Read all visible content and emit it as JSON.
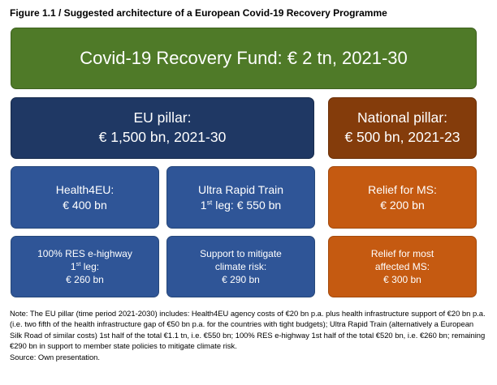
{
  "figure_title": "Figure 1.1 / Suggested architecture of a European Covid-19 Recovery Programme",
  "fund": {
    "text": "Covid-19 Recovery Fund: € 2 tn, 2021-30",
    "color": "#4f7a28"
  },
  "eu_pillar": {
    "line1": "EU pillar:",
    "line2": "€ 1,500 bn, 2021-30",
    "color": "#1f3864"
  },
  "national_pillar": {
    "line1": "National pillar:",
    "line2": "€ 500 bn, 2021-23",
    "color": "#843c0b"
  },
  "health4eu": {
    "line1": "Health4EU:",
    "line2": "€ 400 bn"
  },
  "ultra_rapid_train": {
    "line1": "Ultra Rapid Train",
    "line2_ord": "1",
    "line2_sup": "st",
    "line2_rest": " leg: € 550 bn"
  },
  "relief_ms": {
    "line1": "Relief for MS:",
    "line2": "€ 200 bn"
  },
  "res_highway": {
    "line1": "100% RES e-highway",
    "line2_ord": "1",
    "line2_sup": "st",
    "line2_rest": " leg:",
    "line3": "€ 260 bn"
  },
  "climate_risk": {
    "line1": "Support to mitigate",
    "line2": "climate risk:",
    "line3": "€ 290 bn"
  },
  "relief_most": {
    "line1": "Relief for most",
    "line2": "affected MS:",
    "line3": "€ 300 bn"
  },
  "colors": {
    "blue_box": "#2f5597",
    "orange_box": "#c55a11"
  },
  "note": "Note: The EU pillar (time period 2021-2030) includes: Health4EU agency costs of €20 bn p.a. plus health infrastructure support of €20 bn p.a. (i.e. two fifth of the health infrastructure gap of €50 bn p.a. for the countries with tight budgets); Ultra Rapid Train (alternatively a European Silk Road of similar costs) 1st half of the total €1.1 tn, i.e. €550 bn; 100% RES e-highway 1st half of the total €520 bn, i.e. €260 bn; remaining €290 bn in support to member state policies to mitigate climate risk.",
  "source": "Source: Own presentation."
}
